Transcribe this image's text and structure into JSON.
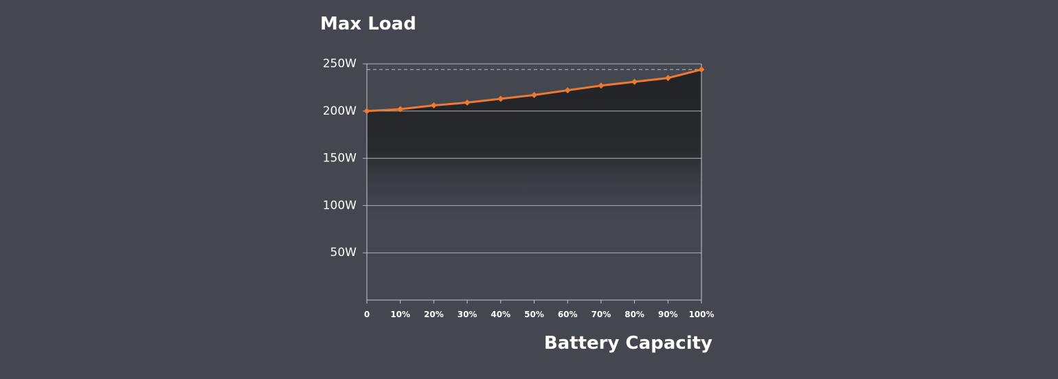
{
  "chart_data": {
    "type": "line",
    "title": "Max Load",
    "xlabel": "Battery Capacity",
    "ylabel": "",
    "x_categories": [
      "0",
      "10%",
      "20%",
      "30%",
      "40%",
      "50%",
      "60%",
      "70%",
      "80%",
      "90%",
      "100%"
    ],
    "y_tick_labels": [
      "250W",
      "200W",
      "150W",
      "100W",
      "50W"
    ],
    "y_tick_values": [
      250,
      200,
      150,
      100,
      50
    ],
    "ylim": [
      0,
      250
    ],
    "series": [
      {
        "values": [
          200,
          202,
          206,
          209,
          213,
          217,
          222,
          227,
          231,
          235,
          244
        ]
      }
    ],
    "reference_line": {
      "value": 244,
      "style": "dashed"
    },
    "grid": true,
    "fill_under_line": true,
    "colors": {
      "background": "#444750",
      "line": "#ee7a30",
      "grid": "#c9cacd",
      "fill_top": "#222326",
      "dashed": "#c9cacd",
      "text": "#ffffff"
    }
  }
}
